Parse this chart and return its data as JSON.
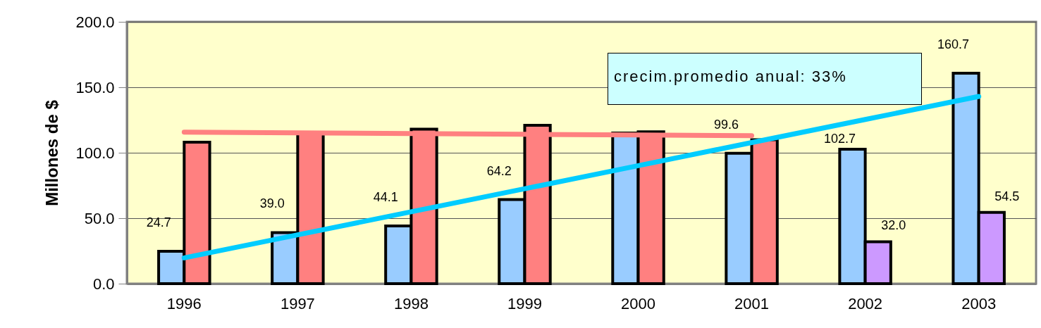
{
  "chart_data": {
    "type": "bar",
    "ylabel": "Millones de $",
    "categories": [
      "1996",
      "1997",
      "1998",
      "1999",
      "2000",
      "2001",
      "2002",
      "2003"
    ],
    "series": [
      {
        "color": "#99ccff",
        "values": [
          24.7,
          39.0,
          44.1,
          64.2,
          115,
          99.6,
          102.7,
          160.7
        ],
        "value_labels": [
          "24.7",
          "39.0",
          "44.1",
          "64.2",
          null,
          "99.6",
          "102.7",
          "160.7"
        ]
      },
      {
        "colors": [
          "#ff8080",
          "#ff8080",
          "#ff8080",
          "#ff8080",
          "#ff8080",
          "#ff8080",
          "#cc99ff",
          "#cc99ff"
        ],
        "values": [
          108,
          115,
          118,
          121,
          116,
          110,
          32.0,
          54.5
        ],
        "value_labels": [
          null,
          null,
          null,
          null,
          null,
          null,
          "32.0",
          "54.5"
        ]
      },
      {
        "type": "line",
        "color": "#ff8080",
        "values": [
          115.7,
          115.2,
          114.7,
          114.1,
          113.6,
          113,
          null,
          null
        ]
      },
      {
        "type": "line",
        "color": "#00ccff",
        "values": [
          19.7,
          37.3,
          54.9,
          72.5,
          90.1,
          107.8,
          125.4,
          143
        ]
      }
    ],
    "ylim": [
      0,
      200
    ],
    "yticks": [
      {
        "value": 0,
        "label": "0.0"
      },
      {
        "value": 50,
        "label": "50.0"
      },
      {
        "value": 100,
        "label": "100.0"
      },
      {
        "value": 150,
        "label": "150.0"
      },
      {
        "value": 200,
        "label": "200.0"
      }
    ],
    "grid": "y",
    "annotations": [
      "crecim.promedio anual: 33%"
    ]
  }
}
